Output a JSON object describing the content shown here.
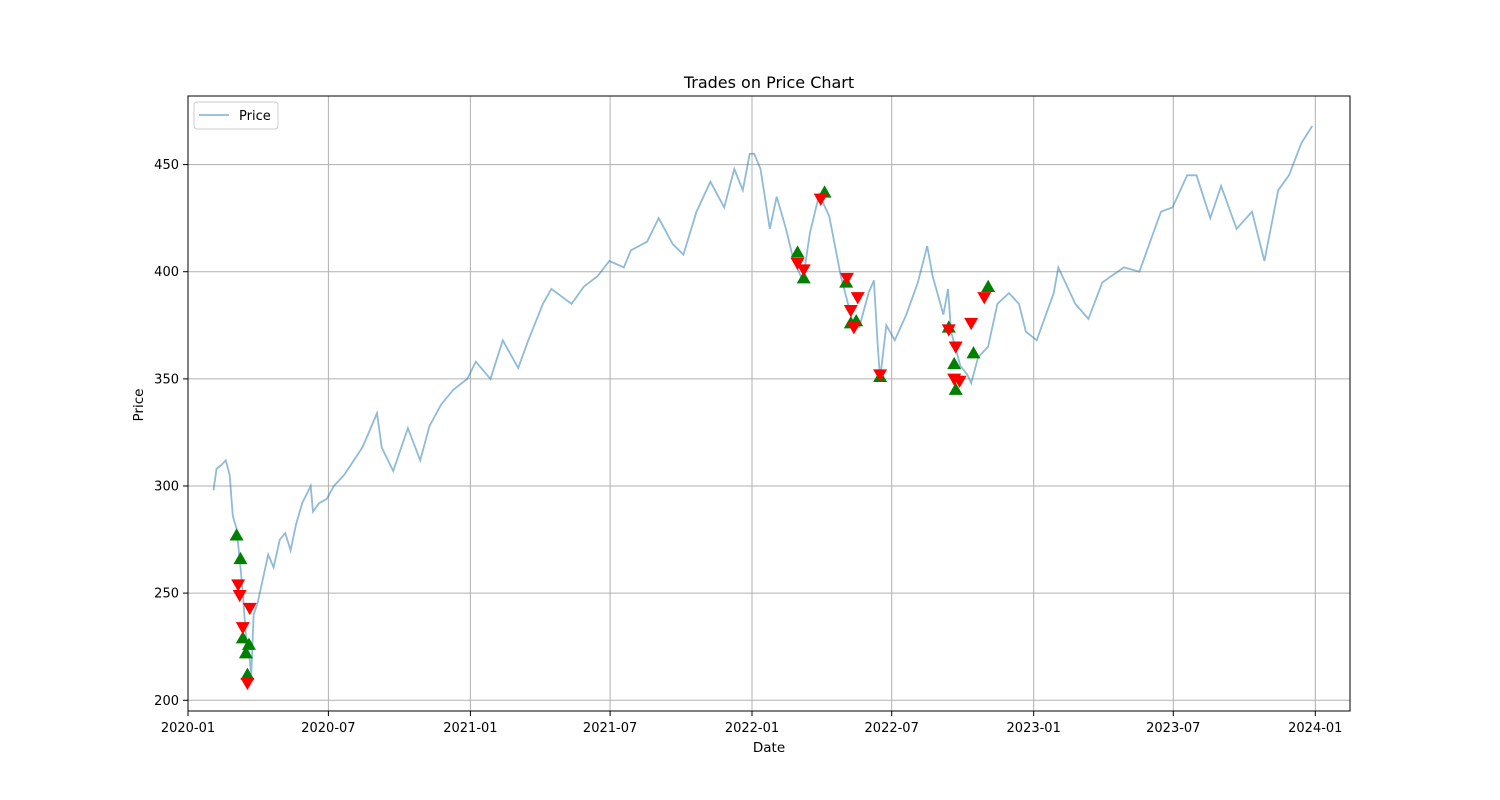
{
  "chart_data": {
    "type": "line",
    "title": "Trades on Price Chart",
    "xlabel": "Date",
    "ylabel": "Price",
    "x_axis_type": "date",
    "xlim": [
      "2020-01-01",
      "2024-02-15"
    ],
    "ylim": [
      195,
      482
    ],
    "x_ticks": [
      "2020-01-01",
      "2020-07-01",
      "2021-01-01",
      "2021-07-01",
      "2022-01-01",
      "2022-07-01",
      "2023-01-01",
      "2023-07-01",
      "2024-01-01"
    ],
    "x_tick_labels": [
      "2020-01",
      "2020-07",
      "2021-01",
      "2021-07",
      "2022-01",
      "2022-07",
      "2023-01",
      "2023-07",
      "2024-01"
    ],
    "y_ticks": [
      200,
      250,
      300,
      350,
      400,
      450
    ],
    "y_tick_labels": [
      "200",
      "250",
      "300",
      "350",
      "400",
      "450"
    ],
    "grid": true,
    "legend": {
      "position": "top-left",
      "entries": [
        "Price"
      ]
    },
    "colors": {
      "price_line": "#1f77b4",
      "buy_marker": "#008000",
      "sell_marker": "#ff0000",
      "grid": "#b0b0b0"
    },
    "series": [
      {
        "name": "Price",
        "type": "line",
        "points": [
          [
            "2020-02-03",
            298
          ],
          [
            "2020-02-07",
            308
          ],
          [
            "2020-02-14",
            310
          ],
          [
            "2020-02-19",
            312
          ],
          [
            "2020-02-24",
            305
          ],
          [
            "2020-02-28",
            286
          ],
          [
            "2020-03-04",
            280
          ],
          [
            "2020-03-09",
            262
          ],
          [
            "2020-03-12",
            250
          ],
          [
            "2020-03-16",
            230
          ],
          [
            "2020-03-20",
            222
          ],
          [
            "2020-03-23",
            212
          ],
          [
            "2020-03-26",
            240
          ],
          [
            "2020-03-31",
            245
          ],
          [
            "2020-04-06",
            255
          ],
          [
            "2020-04-14",
            268
          ],
          [
            "2020-04-21",
            262
          ],
          [
            "2020-04-29",
            275
          ],
          [
            "2020-05-06",
            278
          ],
          [
            "2020-05-13",
            270
          ],
          [
            "2020-05-20",
            282
          ],
          [
            "2020-05-28",
            292
          ],
          [
            "2020-06-08",
            300
          ],
          [
            "2020-06-11",
            288
          ],
          [
            "2020-06-19",
            292
          ],
          [
            "2020-06-29",
            294
          ],
          [
            "2020-07-08",
            300
          ],
          [
            "2020-07-21",
            305
          ],
          [
            "2020-08-03",
            312
          ],
          [
            "2020-08-14",
            318
          ],
          [
            "2020-08-26",
            328
          ],
          [
            "2020-09-02",
            334
          ],
          [
            "2020-09-08",
            318
          ],
          [
            "2020-09-23",
            307
          ],
          [
            "2020-10-12",
            327
          ],
          [
            "2020-10-28",
            312
          ],
          [
            "2020-11-09",
            328
          ],
          [
            "2020-11-24",
            338
          ],
          [
            "2020-12-10",
            345
          ],
          [
            "2020-12-28",
            350
          ],
          [
            "2021-01-08",
            358
          ],
          [
            "2021-01-27",
            350
          ],
          [
            "2021-02-12",
            368
          ],
          [
            "2021-03-04",
            355
          ],
          [
            "2021-03-17",
            368
          ],
          [
            "2021-04-05",
            385
          ],
          [
            "2021-04-16",
            392
          ],
          [
            "2021-05-12",
            385
          ],
          [
            "2021-05-28",
            393
          ],
          [
            "2021-06-15",
            398
          ],
          [
            "2021-06-30",
            405
          ],
          [
            "2021-07-19",
            402
          ],
          [
            "2021-07-28",
            410
          ],
          [
            "2021-08-18",
            414
          ],
          [
            "2021-09-02",
            425
          ],
          [
            "2021-09-20",
            413
          ],
          [
            "2021-10-04",
            408
          ],
          [
            "2021-10-21",
            428
          ],
          [
            "2021-11-08",
            442
          ],
          [
            "2021-11-26",
            430
          ],
          [
            "2021-12-09",
            448
          ],
          [
            "2021-12-20",
            438
          ],
          [
            "2021-12-29",
            455
          ],
          [
            "2022-01-04",
            455
          ],
          [
            "2022-01-12",
            448
          ],
          [
            "2022-01-24",
            420
          ],
          [
            "2022-02-02",
            435
          ],
          [
            "2022-02-14",
            420
          ],
          [
            "2022-02-24",
            405
          ],
          [
            "2022-03-08",
            396
          ],
          [
            "2022-03-17",
            418
          ],
          [
            "2022-03-29",
            436
          ],
          [
            "2022-04-11",
            426
          ],
          [
            "2022-04-26",
            398
          ],
          [
            "2022-05-09",
            380
          ],
          [
            "2022-05-12",
            375
          ],
          [
            "2022-05-20",
            374
          ],
          [
            "2022-06-01",
            390
          ],
          [
            "2022-06-08",
            396
          ],
          [
            "2022-06-13",
            365
          ],
          [
            "2022-06-16",
            350
          ],
          [
            "2022-06-24",
            375
          ],
          [
            "2022-07-05",
            368
          ],
          [
            "2022-07-20",
            380
          ],
          [
            "2022-08-04",
            395
          ],
          [
            "2022-08-16",
            412
          ],
          [
            "2022-08-23",
            398
          ],
          [
            "2022-09-06",
            380
          ],
          [
            "2022-09-12",
            392
          ],
          [
            "2022-09-16",
            372
          ],
          [
            "2022-09-28",
            356
          ],
          [
            "2022-10-07",
            352
          ],
          [
            "2022-10-12",
            348
          ],
          [
            "2022-10-21",
            360
          ],
          [
            "2022-11-03",
            365
          ],
          [
            "2022-11-15",
            385
          ],
          [
            "2022-11-30",
            390
          ],
          [
            "2022-12-13",
            385
          ],
          [
            "2022-12-22",
            372
          ],
          [
            "2023-01-05",
            368
          ],
          [
            "2023-01-27",
            390
          ],
          [
            "2023-02-02",
            402
          ],
          [
            "2023-02-24",
            385
          ],
          [
            "2023-03-13",
            378
          ],
          [
            "2023-03-31",
            395
          ],
          [
            "2023-04-28",
            402
          ],
          [
            "2023-05-18",
            400
          ],
          [
            "2023-06-02",
            415
          ],
          [
            "2023-06-15",
            428
          ],
          [
            "2023-06-30",
            430
          ],
          [
            "2023-07-19",
            445
          ],
          [
            "2023-07-31",
            445
          ],
          [
            "2023-08-18",
            425
          ],
          [
            "2023-09-01",
            440
          ],
          [
            "2023-09-21",
            420
          ],
          [
            "2023-10-11",
            428
          ],
          [
            "2023-10-27",
            405
          ],
          [
            "2023-11-14",
            438
          ],
          [
            "2023-11-28",
            445
          ],
          [
            "2023-12-14",
            460
          ],
          [
            "2023-12-28",
            468
          ]
        ]
      },
      {
        "type": "scatter",
        "marker": "triangle-up",
        "color": "#008000",
        "points": [
          [
            "2020-03-04",
            277
          ],
          [
            "2020-03-09",
            266
          ],
          [
            "2020-03-12",
            229
          ],
          [
            "2020-03-16",
            222
          ],
          [
            "2020-03-18",
            212
          ],
          [
            "2020-03-20",
            226
          ],
          [
            "2022-03-01",
            409
          ],
          [
            "2022-03-09",
            397
          ],
          [
            "2022-04-05",
            437
          ],
          [
            "2022-05-03",
            395
          ],
          [
            "2022-05-09",
            376
          ],
          [
            "2022-05-16",
            377
          ],
          [
            "2022-06-16",
            351
          ],
          [
            "2022-09-13",
            374
          ],
          [
            "2022-09-20",
            357
          ],
          [
            "2022-09-22",
            345
          ],
          [
            "2022-10-15",
            362
          ],
          [
            "2022-11-03",
            393
          ]
        ]
      },
      {
        "type": "scatter",
        "marker": "triangle-down",
        "color": "#ff0000",
        "points": [
          [
            "2020-03-06",
            254
          ],
          [
            "2020-03-08",
            249
          ],
          [
            "2020-03-12",
            234
          ],
          [
            "2020-03-18",
            208
          ],
          [
            "2020-03-21",
            243
          ],
          [
            "2022-03-01",
            404
          ],
          [
            "2022-03-09",
            401
          ],
          [
            "2022-03-31",
            434
          ],
          [
            "2022-05-04",
            397
          ],
          [
            "2022-05-09",
            382
          ],
          [
            "2022-05-13",
            374
          ],
          [
            "2022-05-18",
            388
          ],
          [
            "2022-06-16",
            352
          ],
          [
            "2022-09-13",
            373
          ],
          [
            "2022-09-22",
            365
          ],
          [
            "2022-09-20",
            350
          ],
          [
            "2022-09-27",
            349
          ],
          [
            "2022-10-12",
            376
          ],
          [
            "2022-10-29",
            388
          ]
        ]
      }
    ]
  }
}
